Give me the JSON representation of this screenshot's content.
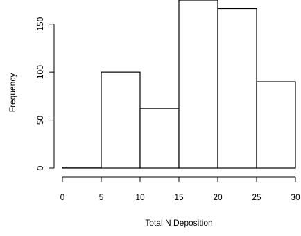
{
  "chart_data": {
    "type": "bar",
    "bins": [
      "0-5",
      "5-10",
      "10-15",
      "15-20",
      "20-25",
      "25-30"
    ],
    "bin_edges": [
      0,
      5,
      10,
      15,
      20,
      25,
      30
    ],
    "values": [
      1,
      100,
      62,
      175,
      166,
      90
    ],
    "xlabel": "Total N Deposition",
    "ylabel": "Frequency",
    "xlim": [
      0,
      30
    ],
    "ylim": [
      0,
      175
    ],
    "x_ticks": [
      0,
      5,
      10,
      15,
      20,
      25,
      30
    ],
    "y_ticks": [
      0,
      50,
      100,
      150
    ],
    "grid": false,
    "bar_fill": "#ffffff",
    "bar_stroke": "#000000"
  }
}
